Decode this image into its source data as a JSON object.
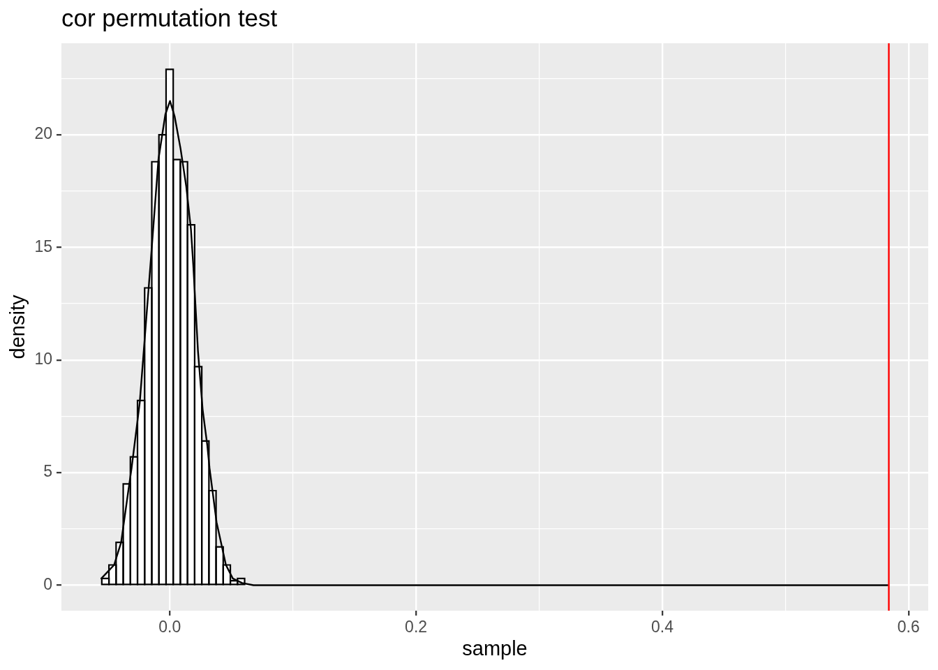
{
  "chart_data": {
    "type": "histogram",
    "title": "cor permutation test",
    "xlabel": "sample",
    "ylabel": "density",
    "series": [
      {
        "color": "#ffffff",
        "bins": [
          -0.0552,
          -0.0494,
          -0.0436,
          -0.0378,
          -0.032,
          -0.0262,
          -0.0204,
          -0.0146,
          -0.0088,
          -0.003,
          0.0028,
          0.0086,
          0.0144,
          0.0202,
          0.026,
          0.0318,
          0.0376,
          0.0434,
          0.0492,
          0.055,
          0.0608
        ],
        "values": [
          0.3,
          0.9,
          1.9,
          4.5,
          5.7,
          8.2,
          13.2,
          18.8,
          20.0,
          22.9,
          18.9,
          18.8,
          16.0,
          9.7,
          6.4,
          4.2,
          1.7,
          0.9,
          0.2,
          0.3
        ]
      },
      {
        "type": "line",
        "color": "#000000",
        "x": [
          -0.0556,
          -0.0452,
          -0.0395,
          -0.0339,
          -0.031,
          -0.0244,
          -0.0197,
          -0.0153,
          -0.0092,
          -0.0036,
          0.0002,
          0.004,
          0.0087,
          0.0134,
          0.0172,
          0.0191,
          0.0229,
          0.0267,
          0.0305,
          0.0323,
          0.038,
          0.0456,
          0.0512,
          0.0588,
          0.068,
          0.583
        ],
        "values": [
          0.3,
          0.9,
          1.9,
          4.1,
          5.2,
          8.1,
          11.4,
          14.5,
          18.9,
          20.9,
          21.5,
          20.8,
          19.4,
          17.7,
          15.8,
          14.2,
          10.4,
          7.8,
          6.2,
          5.2,
          2.8,
          0.9,
          0.3,
          0.1,
          0,
          0
        ]
      }
    ],
    "xlim": [
      -0.088,
      0.616
    ],
    "xticks": [
      {
        "value": 0,
        "label": "0.0"
      },
      {
        "value": 0.1,
        "label": null
      },
      {
        "value": 0.2,
        "label": "0.2"
      },
      {
        "value": 0.3,
        "label": null
      },
      {
        "value": 0.4,
        "label": "0.4"
      },
      {
        "value": 0.5,
        "label": null
      },
      {
        "value": 0.6,
        "label": "0.6"
      }
    ],
    "ylim": [
      -1.13,
      24.06
    ],
    "yticks": [
      0,
      {
        "value": 2.5,
        "label": null
      },
      5,
      {
        "value": 7.5,
        "label": null
      },
      10,
      {
        "value": 12.5,
        "label": null
      },
      15,
      {
        "value": 17.5,
        "label": null
      },
      20,
      {
        "value": 22.5,
        "label": null
      }
    ],
    "ref_lines": [
      {
        "axis": "x",
        "value": 0.584,
        "color": "#ff0000"
      }
    ],
    "grid": true
  }
}
